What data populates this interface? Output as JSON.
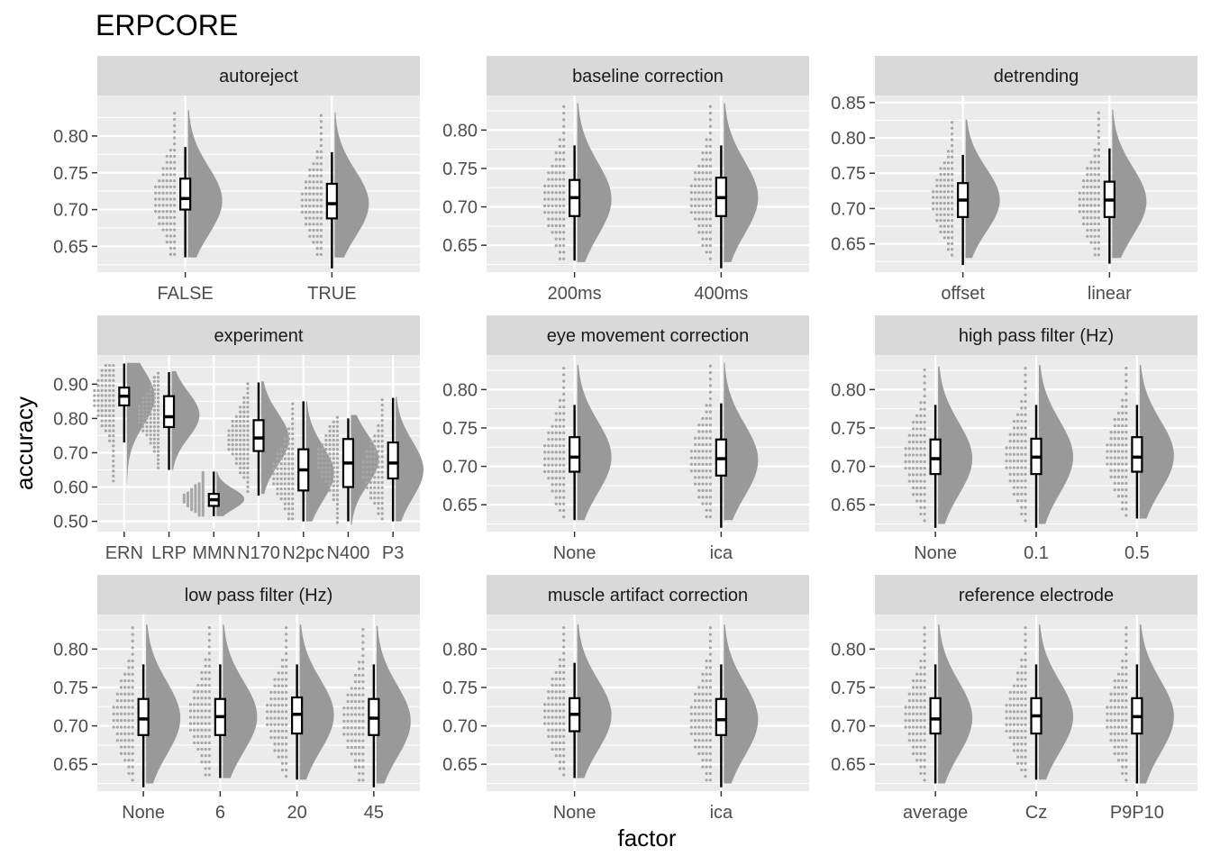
{
  "title": "ERPCORE",
  "colors": {
    "panel_bg": "#ebebeb",
    "strip_bg": "#d9d9d9",
    "grid": "#ffffff",
    "violin": "#999999",
    "dots": "#a6a6a6",
    "box": "#000000"
  },
  "chart_data": {
    "type": "raincloud",
    "xlabel": "factor",
    "ylabel": "accuracy",
    "grid": true,
    "facets": [
      {
        "strip": "autoreject",
        "categories": [
          "FALSE",
          "TRUE"
        ],
        "yticks": [
          0.65,
          0.7,
          0.75,
          0.8
        ],
        "ylim": [
          0.615,
          0.855
        ],
        "groups": [
          {
            "median": 0.715,
            "q1": 0.7,
            "q3": 0.742,
            "min": 0.635,
            "max": 0.785,
            "dmin": 0.635,
            "dmax": 0.835,
            "peak": 0.712
          },
          {
            "median": 0.708,
            "q1": 0.688,
            "q3": 0.735,
            "min": 0.62,
            "max": 0.778,
            "dmin": 0.635,
            "dmax": 0.832,
            "peak": 0.708
          }
        ]
      },
      {
        "strip": "baseline correction",
        "categories": [
          "200ms",
          "400ms"
        ],
        "yticks": [
          0.65,
          0.7,
          0.75,
          0.8
        ],
        "ylim": [
          0.615,
          0.845
        ],
        "groups": [
          {
            "median": 0.712,
            "q1": 0.688,
            "q3": 0.735,
            "min": 0.63,
            "max": 0.78,
            "dmin": 0.628,
            "dmax": 0.835,
            "peak": 0.71
          },
          {
            "median": 0.712,
            "q1": 0.688,
            "q3": 0.738,
            "min": 0.62,
            "max": 0.78,
            "dmin": 0.628,
            "dmax": 0.835,
            "peak": 0.712
          }
        ]
      },
      {
        "strip": "detrending",
        "categories": [
          "offset",
          "linear"
        ],
        "yticks": [
          0.65,
          0.7,
          0.75,
          0.8,
          0.85
        ],
        "ylim": [
          0.61,
          0.86
        ],
        "groups": [
          {
            "median": 0.712,
            "q1": 0.688,
            "q3": 0.736,
            "min": 0.62,
            "max": 0.776,
            "dmin": 0.63,
            "dmax": 0.826,
            "peak": 0.712
          },
          {
            "median": 0.712,
            "q1": 0.688,
            "q3": 0.738,
            "min": 0.622,
            "max": 0.785,
            "dmin": 0.63,
            "dmax": 0.84,
            "peak": 0.71
          }
        ]
      },
      {
        "strip": "experiment",
        "categories": [
          "ERN",
          "LRP",
          "MMN",
          "N170",
          "N2pc",
          "N400",
          "P3"
        ],
        "yticks": [
          0.5,
          0.6,
          0.7,
          0.8,
          0.9
        ],
        "ylim": [
          0.47,
          0.985
        ],
        "groups": [
          {
            "median": 0.865,
            "q1": 0.838,
            "q3": 0.89,
            "min": 0.73,
            "max": 0.96,
            "dmin": 0.61,
            "dmax": 0.962,
            "peak": 0.862
          },
          {
            "median": 0.805,
            "q1": 0.775,
            "q3": 0.865,
            "min": 0.65,
            "max": 0.935,
            "dmin": 0.65,
            "dmax": 0.938,
            "peak": 0.81
          },
          {
            "median": 0.563,
            "q1": 0.545,
            "q3": 0.58,
            "min": 0.515,
            "max": 0.645,
            "dmin": 0.515,
            "dmax": 0.645,
            "peak": 0.565
          },
          {
            "median": 0.743,
            "q1": 0.705,
            "q3": 0.795,
            "min": 0.575,
            "max": 0.905,
            "dmin": 0.58,
            "dmax": 0.908,
            "peak": 0.74
          },
          {
            "median": 0.65,
            "q1": 0.59,
            "q3": 0.71,
            "min": 0.5,
            "max": 0.85,
            "dmin": 0.5,
            "dmax": 0.85,
            "peak": 0.64
          },
          {
            "median": 0.67,
            "q1": 0.6,
            "q3": 0.74,
            "min": 0.5,
            "max": 0.8,
            "dmin": 0.49,
            "dmax": 0.81,
            "peak": 0.68
          },
          {
            "median": 0.67,
            "q1": 0.625,
            "q3": 0.73,
            "min": 0.5,
            "max": 0.86,
            "dmin": 0.5,
            "dmax": 0.862,
            "peak": 0.65
          }
        ]
      },
      {
        "strip": "eye movement correction",
        "categories": [
          "None",
          "ica"
        ],
        "yticks": [
          0.65,
          0.7,
          0.75,
          0.8
        ],
        "ylim": [
          0.615,
          0.845
        ],
        "groups": [
          {
            "median": 0.712,
            "q1": 0.693,
            "q3": 0.738,
            "min": 0.63,
            "max": 0.78,
            "dmin": 0.63,
            "dmax": 0.832,
            "peak": 0.712
          },
          {
            "median": 0.71,
            "q1": 0.688,
            "q3": 0.735,
            "min": 0.62,
            "max": 0.782,
            "dmin": 0.63,
            "dmax": 0.835,
            "peak": 0.708
          }
        ]
      },
      {
        "strip": "high pass filter (Hz)",
        "categories": [
          "None",
          "0.1",
          "0.5"
        ],
        "yticks": [
          0.65,
          0.7,
          0.75,
          0.8
        ],
        "ylim": [
          0.615,
          0.845
        ],
        "groups": [
          {
            "median": 0.71,
            "q1": 0.69,
            "q3": 0.735,
            "min": 0.62,
            "max": 0.78,
            "dmin": 0.625,
            "dmax": 0.83,
            "peak": 0.71
          },
          {
            "median": 0.712,
            "q1": 0.69,
            "q3": 0.736,
            "min": 0.62,
            "max": 0.78,
            "dmin": 0.625,
            "dmax": 0.832,
            "peak": 0.712
          },
          {
            "median": 0.712,
            "q1": 0.693,
            "q3": 0.738,
            "min": 0.632,
            "max": 0.78,
            "dmin": 0.632,
            "dmax": 0.832,
            "peak": 0.714
          }
        ]
      },
      {
        "strip": "low pass filter (Hz)",
        "categories": [
          "None",
          "6",
          "20",
          "45"
        ],
        "yticks": [
          0.65,
          0.7,
          0.75,
          0.8
        ],
        "ylim": [
          0.615,
          0.845
        ],
        "groups": [
          {
            "median": 0.709,
            "q1": 0.688,
            "q3": 0.735,
            "min": 0.62,
            "max": 0.78,
            "dmin": 0.625,
            "dmax": 0.832,
            "peak": 0.71
          },
          {
            "median": 0.712,
            "q1": 0.688,
            "q3": 0.735,
            "min": 0.632,
            "max": 0.78,
            "dmin": 0.632,
            "dmax": 0.832,
            "peak": 0.712
          },
          {
            "median": 0.715,
            "q1": 0.69,
            "q3": 0.737,
            "min": 0.63,
            "max": 0.78,
            "dmin": 0.63,
            "dmax": 0.832,
            "peak": 0.714
          },
          {
            "median": 0.71,
            "q1": 0.688,
            "q3": 0.735,
            "min": 0.62,
            "max": 0.78,
            "dmin": 0.625,
            "dmax": 0.83,
            "peak": 0.706
          }
        ]
      },
      {
        "strip": "muscle artifact correction",
        "categories": [
          "None",
          "ica"
        ],
        "yticks": [
          0.65,
          0.7,
          0.75,
          0.8
        ],
        "ylim": [
          0.615,
          0.845
        ],
        "groups": [
          {
            "median": 0.715,
            "q1": 0.693,
            "q3": 0.736,
            "min": 0.632,
            "max": 0.782,
            "dmin": 0.632,
            "dmax": 0.832,
            "peak": 0.714
          },
          {
            "median": 0.708,
            "q1": 0.688,
            "q3": 0.735,
            "min": 0.62,
            "max": 0.78,
            "dmin": 0.625,
            "dmax": 0.832,
            "peak": 0.708
          }
        ]
      },
      {
        "strip": "reference electrode",
        "categories": [
          "average",
          "Cz",
          "P9P10"
        ],
        "yticks": [
          0.65,
          0.7,
          0.75,
          0.8
        ],
        "ylim": [
          0.615,
          0.845
        ],
        "groups": [
          {
            "median": 0.709,
            "q1": 0.69,
            "q3": 0.736,
            "min": 0.625,
            "max": 0.78,
            "dmin": 0.625,
            "dmax": 0.832,
            "peak": 0.71
          },
          {
            "median": 0.713,
            "q1": 0.69,
            "q3": 0.736,
            "min": 0.63,
            "max": 0.78,
            "dmin": 0.63,
            "dmax": 0.832,
            "peak": 0.712
          },
          {
            "median": 0.712,
            "q1": 0.69,
            "q3": 0.736,
            "min": 0.625,
            "max": 0.78,
            "dmin": 0.625,
            "dmax": 0.832,
            "peak": 0.712
          }
        ]
      }
    ]
  }
}
